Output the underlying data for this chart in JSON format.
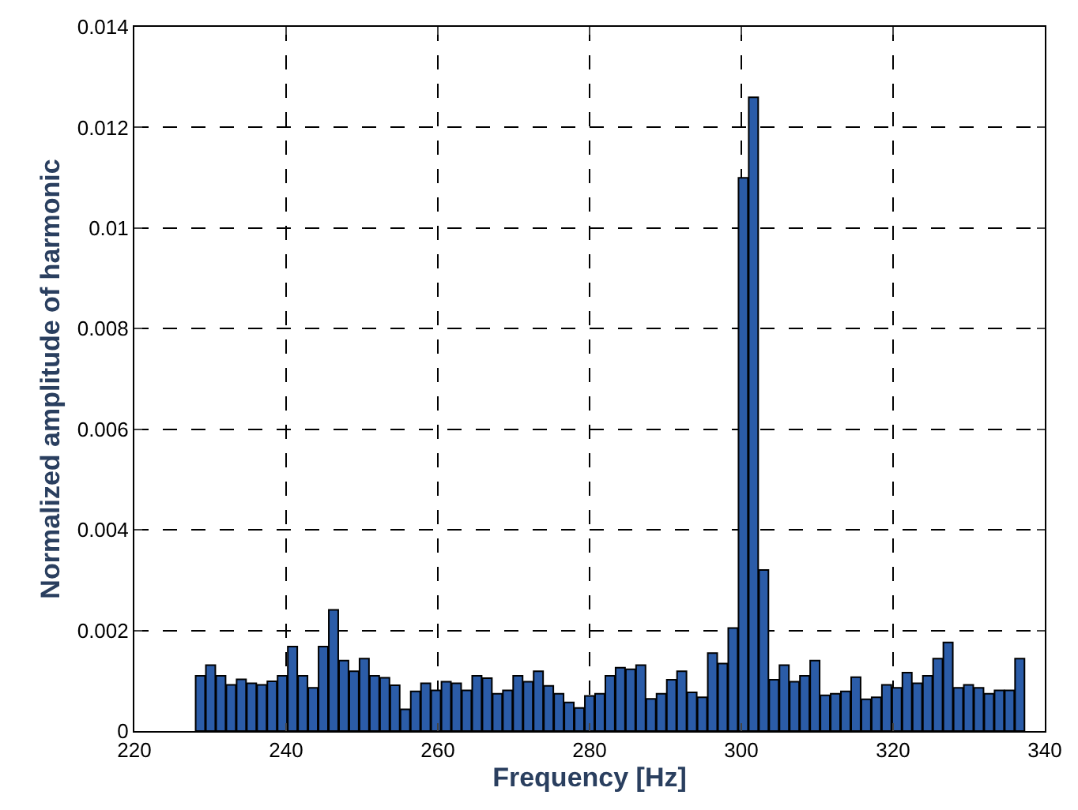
{
  "chart_data": {
    "type": "bar",
    "xlabel": "Frequency [Hz]",
    "ylabel": "Normalized amplitude of harmonic",
    "x": [
      228.7,
      230.05,
      231.4,
      232.75,
      234.1,
      235.45,
      236.8,
      238.15,
      239.5,
      240.85,
      242.2,
      243.55,
      244.9,
      246.25,
      247.6,
      248.95,
      250.3,
      251.65,
      253.0,
      254.35,
      255.7,
      257.05,
      258.4,
      259.75,
      261.1,
      262.45,
      263.8,
      265.15,
      266.5,
      267.85,
      269.2,
      270.55,
      271.9,
      273.25,
      274.6,
      275.95,
      277.3,
      278.65,
      280.0,
      281.35,
      282.7,
      284.05,
      285.4,
      286.75,
      288.1,
      289.45,
      290.8,
      292.15,
      293.5,
      294.85,
      296.2,
      297.55,
      298.9,
      300.25,
      301.6,
      302.95,
      304.3,
      305.65,
      307.0,
      308.35,
      309.7,
      311.05,
      312.4,
      313.75,
      315.1,
      316.45,
      317.8,
      319.15,
      320.5,
      321.85,
      323.2,
      324.55,
      325.9,
      327.25,
      328.6,
      329.95,
      331.3,
      332.65,
      334.0,
      335.35,
      336.7
    ],
    "values": [
      0.0011,
      0.00131,
      0.0011,
      0.00092,
      0.00103,
      0.00095,
      0.00092,
      0.00099,
      0.0011,
      0.00168,
      0.0011,
      0.00086,
      0.00168,
      0.00241,
      0.0014,
      0.00119,
      0.00144,
      0.0011,
      0.00106,
      0.00091,
      0.00043,
      0.00079,
      0.00095,
      0.00081,
      0.00098,
      0.00095,
      0.00081,
      0.0011,
      0.00105,
      0.00074,
      0.00081,
      0.0011,
      0.00098,
      0.00119,
      0.0009,
      0.00074,
      0.00057,
      0.00046,
      0.0007,
      0.00074,
      0.0011,
      0.00126,
      0.00123,
      0.00131,
      0.00064,
      0.00074,
      0.00102,
      0.00119,
      0.00077,
      0.00067,
      0.00155,
      0.00134,
      0.00205,
      0.011,
      0.0126,
      0.0032,
      0.00102,
      0.00131,
      0.00098,
      0.0011,
      0.0014,
      0.00071,
      0.00074,
      0.00079,
      0.00107,
      0.00063,
      0.00067,
      0.00092,
      0.00086,
      0.00116,
      0.00095,
      0.0011,
      0.00144,
      0.00176,
      0.00086,
      0.00092,
      0.00086,
      0.00074,
      0.00081,
      0.00081,
      0.00144
    ],
    "color": "#2b5ca8",
    "xlim": [
      220,
      340
    ],
    "xticks": [
      220,
      240,
      260,
      280,
      300,
      320,
      340
    ],
    "ylim": [
      0,
      0.014
    ],
    "yticks": [
      0,
      0.002,
      0.004,
      0.006,
      0.008,
      0.01,
      0.012,
      0.014
    ],
    "grid": true
  }
}
